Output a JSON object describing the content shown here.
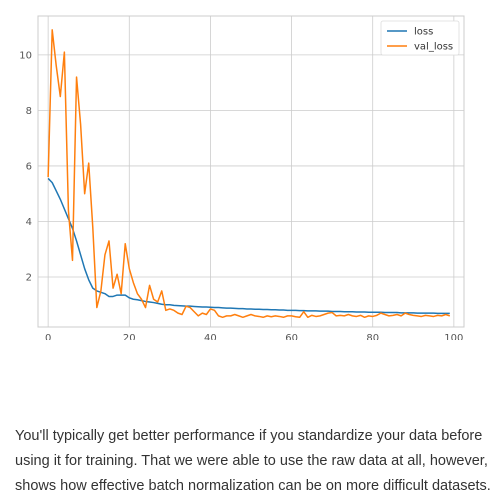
{
  "chart_data": {
    "type": "line",
    "title": "",
    "xlabel": "",
    "ylabel": "",
    "xlim": [
      -2.5,
      102.5
    ],
    "ylim": [
      0.2,
      11.4
    ],
    "xticks": [
      0,
      20,
      40,
      60,
      80,
      100
    ],
    "yticks": [
      2,
      4,
      6,
      8,
      10
    ],
    "grid": true,
    "legend_position": "top-right",
    "series": [
      {
        "name": "loss",
        "color": "#1f77b4",
        "x": [
          0,
          1,
          2,
          3,
          4,
          5,
          6,
          7,
          8,
          9,
          10,
          11,
          12,
          13,
          14,
          15,
          16,
          17,
          18,
          19,
          20,
          21,
          22,
          23,
          24,
          25,
          26,
          27,
          28,
          29,
          30,
          31,
          32,
          33,
          34,
          35,
          36,
          37,
          38,
          39,
          40,
          41,
          42,
          43,
          44,
          45,
          46,
          47,
          48,
          49,
          50,
          51,
          52,
          53,
          54,
          55,
          56,
          57,
          58,
          59,
          60,
          61,
          62,
          63,
          64,
          65,
          66,
          67,
          68,
          69,
          70,
          71,
          72,
          73,
          74,
          75,
          76,
          77,
          78,
          79,
          80,
          81,
          82,
          83,
          84,
          85,
          86,
          87,
          88,
          89,
          90,
          91,
          92,
          93,
          94,
          95,
          96,
          97,
          98,
          99
        ],
        "y": [
          5.55,
          5.4,
          5.1,
          4.8,
          4.45,
          4.1,
          3.75,
          3.3,
          2.8,
          2.3,
          1.9,
          1.6,
          1.5,
          1.45,
          1.4,
          1.3,
          1.3,
          1.35,
          1.35,
          1.35,
          1.25,
          1.2,
          1.18,
          1.15,
          1.12,
          1.1,
          1.08,
          1.05,
          1.02,
          1.0,
          1.0,
          0.98,
          0.97,
          0.96,
          0.95,
          0.95,
          0.94,
          0.93,
          0.92,
          0.92,
          0.91,
          0.9,
          0.9,
          0.89,
          0.88,
          0.88,
          0.87,
          0.86,
          0.86,
          0.85,
          0.85,
          0.84,
          0.84,
          0.83,
          0.83,
          0.82,
          0.82,
          0.81,
          0.81,
          0.8,
          0.8,
          0.8,
          0.79,
          0.79,
          0.78,
          0.78,
          0.78,
          0.77,
          0.77,
          0.77,
          0.76,
          0.76,
          0.76,
          0.75,
          0.75,
          0.75,
          0.74,
          0.74,
          0.74,
          0.73,
          0.73,
          0.73,
          0.73,
          0.72,
          0.72,
          0.72,
          0.72,
          0.71,
          0.71,
          0.71,
          0.71,
          0.7,
          0.7,
          0.7,
          0.7,
          0.7,
          0.69,
          0.69,
          0.69,
          0.69
        ]
      },
      {
        "name": "val_loss",
        "color": "#ff7f0e",
        "x": [
          0,
          1,
          2,
          3,
          4,
          5,
          6,
          7,
          8,
          9,
          10,
          11,
          12,
          13,
          14,
          15,
          16,
          17,
          18,
          19,
          20,
          21,
          22,
          23,
          24,
          25,
          26,
          27,
          28,
          29,
          30,
          31,
          32,
          33,
          34,
          35,
          36,
          37,
          38,
          39,
          40,
          41,
          42,
          43,
          44,
          45,
          46,
          47,
          48,
          49,
          50,
          51,
          52,
          53,
          54,
          55,
          56,
          57,
          58,
          59,
          60,
          61,
          62,
          63,
          64,
          65,
          66,
          67,
          68,
          69,
          70,
          71,
          72,
          73,
          74,
          75,
          76,
          77,
          78,
          79,
          80,
          81,
          82,
          83,
          84,
          85,
          86,
          87,
          88,
          89,
          90,
          91,
          92,
          93,
          94,
          95,
          96,
          97,
          98,
          99
        ],
        "y": [
          5.6,
          10.9,
          9.6,
          8.5,
          10.1,
          4.4,
          2.6,
          9.2,
          7.5,
          5.0,
          6.1,
          3.8,
          0.9,
          1.5,
          2.8,
          3.3,
          1.6,
          2.1,
          1.4,
          3.2,
          2.3,
          1.8,
          1.4,
          1.2,
          0.9,
          1.7,
          1.2,
          1.1,
          1.5,
          0.8,
          0.85,
          0.8,
          0.7,
          0.65,
          0.95,
          0.9,
          0.75,
          0.6,
          0.7,
          0.65,
          0.85,
          0.8,
          0.6,
          0.55,
          0.6,
          0.6,
          0.65,
          0.6,
          0.55,
          0.6,
          0.65,
          0.6,
          0.58,
          0.55,
          0.6,
          0.57,
          0.6,
          0.58,
          0.55,
          0.6,
          0.6,
          0.57,
          0.55,
          0.75,
          0.55,
          0.62,
          0.58,
          0.6,
          0.65,
          0.7,
          0.72,
          0.6,
          0.62,
          0.6,
          0.65,
          0.6,
          0.58,
          0.62,
          0.55,
          0.6,
          0.58,
          0.62,
          0.7,
          0.65,
          0.6,
          0.62,
          0.65,
          0.6,
          0.7,
          0.65,
          0.62,
          0.6,
          0.58,
          0.62,
          0.6,
          0.58,
          0.62,
          0.6,
          0.65,
          0.6
        ]
      }
    ]
  },
  "caption": "You'll typically get better performance if you standardize your data before using it for training. That we were able to use the raw data at all, however, shows how effective batch normalization can be on more difficult datasets."
}
